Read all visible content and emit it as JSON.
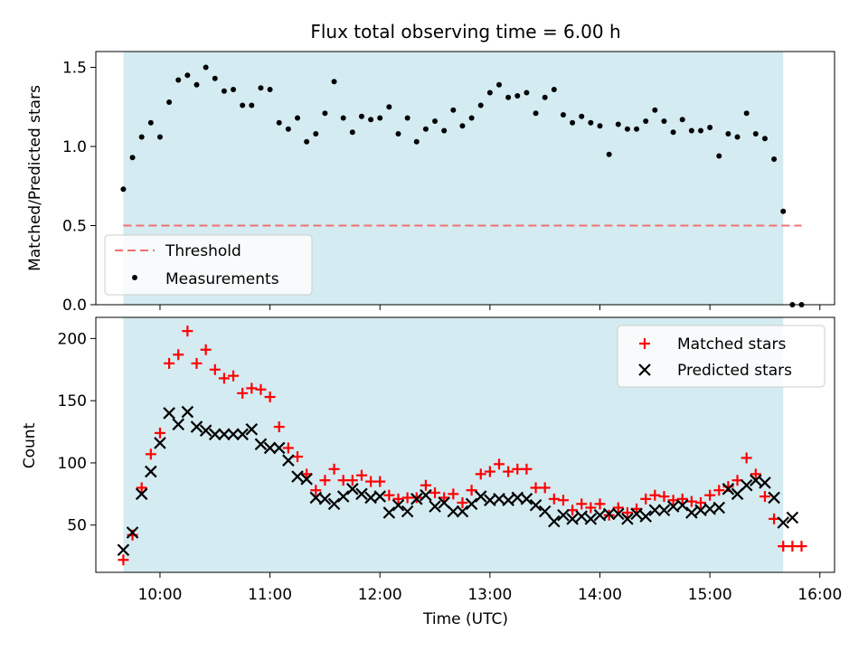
{
  "chart_data": [
    {
      "type": "scatter",
      "title": "Flux total observing time = 6.00 h",
      "xlabel": "",
      "ylabel": "Matched/Predicted stars",
      "xlim": [
        "09:25",
        "16:08"
      ],
      "ylim": [
        0,
        1.6
      ],
      "yticks": [
        0.0,
        0.5,
        1.0,
        1.5
      ],
      "ytick_labels": [
        "0.0",
        "0.5",
        "1.0",
        "1.5"
      ],
      "shaded_region": {
        "from": "09:40",
        "to": "15:40",
        "color": "#d4ebf1"
      },
      "threshold": {
        "name": "Threshold",
        "value": 0.5,
        "from": "09:40",
        "to": "15:50",
        "color": "#f07070"
      },
      "legend": {
        "placement": "lower-left",
        "entries": [
          "Threshold",
          "Measurements"
        ]
      },
      "series": [
        {
          "name": "Measurements",
          "marker": "dot",
          "color": "#000000",
          "x": [
            "09:40",
            "09:45",
            "09:50",
            "09:55",
            "10:00",
            "10:05",
            "10:10",
            "10:15",
            "10:20",
            "10:25",
            "10:30",
            "10:35",
            "10:40",
            "10:45",
            "10:50",
            "10:55",
            "11:00",
            "11:05",
            "11:10",
            "11:15",
            "11:20",
            "11:25",
            "11:30",
            "11:35",
            "11:40",
            "11:45",
            "11:50",
            "11:55",
            "12:00",
            "12:05",
            "12:10",
            "12:15",
            "12:20",
            "12:25",
            "12:30",
            "12:35",
            "12:40",
            "12:45",
            "12:50",
            "12:55",
            "13:00",
            "13:05",
            "13:10",
            "13:15",
            "13:20",
            "13:25",
            "13:30",
            "13:35",
            "13:40",
            "13:45",
            "13:50",
            "13:55",
            "14:00",
            "14:05",
            "14:10",
            "14:15",
            "14:20",
            "14:25",
            "14:30",
            "14:35",
            "14:40",
            "14:45",
            "14:50",
            "14:55",
            "15:00",
            "15:05",
            "15:10",
            "15:15",
            "15:20",
            "15:25",
            "15:30",
            "15:35",
            "15:40",
            "15:45",
            "15:50"
          ],
          "values": [
            0.73,
            0.93,
            1.06,
            1.15,
            1.06,
            1.28,
            1.42,
            1.45,
            1.39,
            1.5,
            1.43,
            1.35,
            1.36,
            1.26,
            1.26,
            1.37,
            1.36,
            1.15,
            1.11,
            1.18,
            1.03,
            1.08,
            1.21,
            1.41,
            1.18,
            1.09,
            1.19,
            1.17,
            1.18,
            1.25,
            1.08,
            1.18,
            1.03,
            1.11,
            1.16,
            1.1,
            1.23,
            1.13,
            1.18,
            1.26,
            1.34,
            1.39,
            1.31,
            1.32,
            1.34,
            1.21,
            1.31,
            1.36,
            1.2,
            1.15,
            1.19,
            1.15,
            1.13,
            0.95,
            1.14,
            1.11,
            1.11,
            1.16,
            1.23,
            1.16,
            1.09,
            1.17,
            1.1,
            1.1,
            1.12,
            0.94,
            1.08,
            1.06,
            1.21,
            1.08,
            1.05,
            0.92,
            0.59,
            0.0,
            0.0
          ]
        }
      ]
    },
    {
      "type": "scatter",
      "title": "",
      "xlabel": "Time (UTC)",
      "ylabel": "Count",
      "xlim": [
        "09:25",
        "16:08"
      ],
      "ylim": [
        12,
        217
      ],
      "yticks": [
        50,
        100,
        150,
        200
      ],
      "ytick_labels": [
        "50",
        "100",
        "150",
        "200"
      ],
      "xticks": [
        "10:00",
        "11:00",
        "12:00",
        "13:00",
        "14:00",
        "15:00",
        "16:00"
      ],
      "shaded_region": {
        "from": "09:40",
        "to": "15:40",
        "color": "#d4ebf1"
      },
      "legend": {
        "placement": "upper-right",
        "entries": [
          "Matched stars",
          "Predicted stars"
        ]
      },
      "x": [
        "09:40",
        "09:45",
        "09:50",
        "09:55",
        "10:00",
        "10:05",
        "10:10",
        "10:15",
        "10:20",
        "10:25",
        "10:30",
        "10:35",
        "10:40",
        "10:45",
        "10:50",
        "10:55",
        "11:00",
        "11:05",
        "11:10",
        "11:15",
        "11:20",
        "11:25",
        "11:30",
        "11:35",
        "11:40",
        "11:45",
        "11:50",
        "11:55",
        "12:00",
        "12:05",
        "12:10",
        "12:15",
        "12:20",
        "12:25",
        "12:30",
        "12:35",
        "12:40",
        "12:45",
        "12:50",
        "12:55",
        "13:00",
        "13:05",
        "13:10",
        "13:15",
        "13:20",
        "13:25",
        "13:30",
        "13:35",
        "13:40",
        "13:45",
        "13:50",
        "13:55",
        "14:00",
        "14:05",
        "14:10",
        "14:15",
        "14:20",
        "14:25",
        "14:30",
        "14:35",
        "14:40",
        "14:45",
        "14:50",
        "14:55",
        "15:00",
        "15:05",
        "15:10",
        "15:15",
        "15:20",
        "15:25",
        "15:30",
        "15:35",
        "15:40",
        "15:45",
        "15:50"
      ],
      "series": [
        {
          "name": "Matched stars",
          "marker": "plus",
          "color": "#ff0000",
          "values": [
            22,
            42,
            80,
            107,
            124,
            180,
            187,
            206,
            180,
            191,
            175,
            168,
            170,
            156,
            160,
            159,
            153,
            129,
            112,
            105,
            91,
            78,
            86,
            95,
            86,
            86,
            90,
            85,
            85,
            74,
            71,
            72,
            72,
            82,
            76,
            72,
            75,
            68,
            78,
            91,
            93,
            99,
            93,
            95,
            95,
            80,
            80,
            71,
            70,
            62,
            67,
            64,
            67,
            58,
            64,
            60,
            63,
            71,
            74,
            73,
            70,
            71,
            69,
            68,
            74,
            78,
            81,
            86,
            104,
            91,
            73,
            55,
            33,
            33,
            33
          ]
        },
        {
          "name": "Predicted stars",
          "marker": "x",
          "color": "#000000",
          "values": [
            30,
            44,
            75,
            93,
            116,
            140,
            131,
            141,
            129,
            126,
            123,
            123,
            123,
            123,
            127,
            115,
            112,
            112,
            102,
            89,
            87,
            72,
            71,
            67,
            73,
            79,
            75,
            72,
            73,
            60,
            66,
            61,
            71,
            74,
            65,
            68,
            61,
            61,
            67,
            73,
            70,
            71,
            70,
            72,
            71,
            66,
            61,
            53,
            58,
            55,
            57,
            55,
            58,
            59,
            59,
            55,
            59,
            57,
            62,
            62,
            65,
            66,
            60,
            62,
            63,
            64,
            79,
            75,
            82,
            86,
            84,
            72,
            52,
            56,
            null
          ]
        }
      ]
    }
  ]
}
